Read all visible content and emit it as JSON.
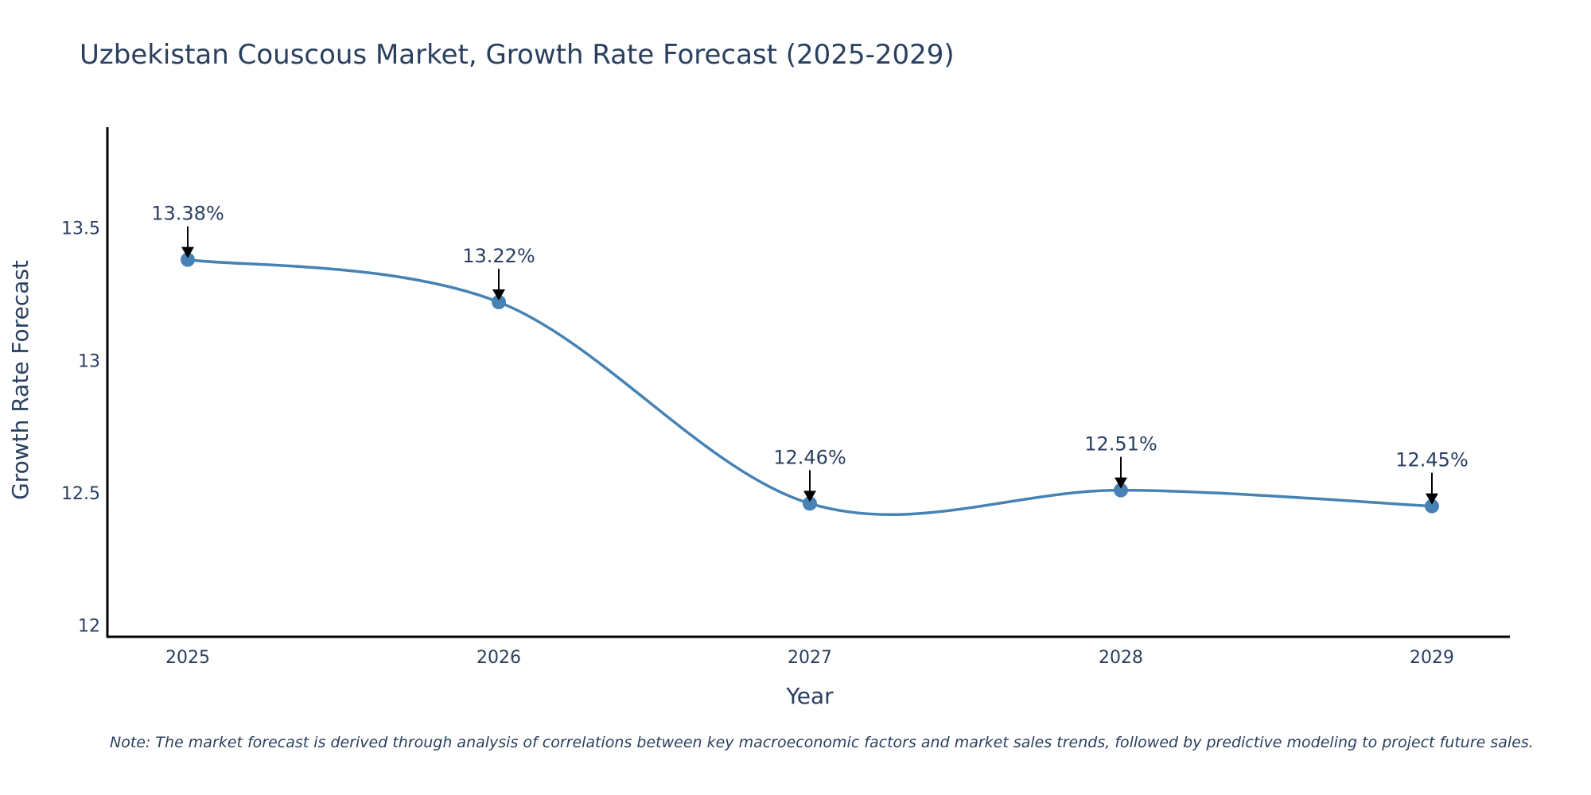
{
  "chart_data": {
    "type": "line",
    "title": "Uzbekistan Couscous Market, Growth Rate Forecast (2025-2029)",
    "xlabel": "Year",
    "ylabel": "Growth Rate Forecast",
    "categories": [
      "2025",
      "2026",
      "2027",
      "2028",
      "2029"
    ],
    "series": [
      {
        "name": "Growth Rate Forecast",
        "values": [
          13.38,
          13.22,
          12.46,
          12.51,
          12.45
        ]
      }
    ],
    "data_labels": [
      "13.38%",
      "13.22%",
      "12.46%",
      "12.51%",
      "12.45%"
    ],
    "yticks": [
      12,
      12.5,
      13,
      13.5
    ],
    "ytick_labels": [
      "12",
      "12.5",
      "13",
      "13.5"
    ],
    "ylim": [
      11.96,
      13.88
    ],
    "grid": false,
    "line_color": "#4682b4",
    "note": "Note: The market forecast is derived through analysis of correlations between key macroeconomic factors and market sales trends, followed by predictive modeling to project future sales."
  }
}
